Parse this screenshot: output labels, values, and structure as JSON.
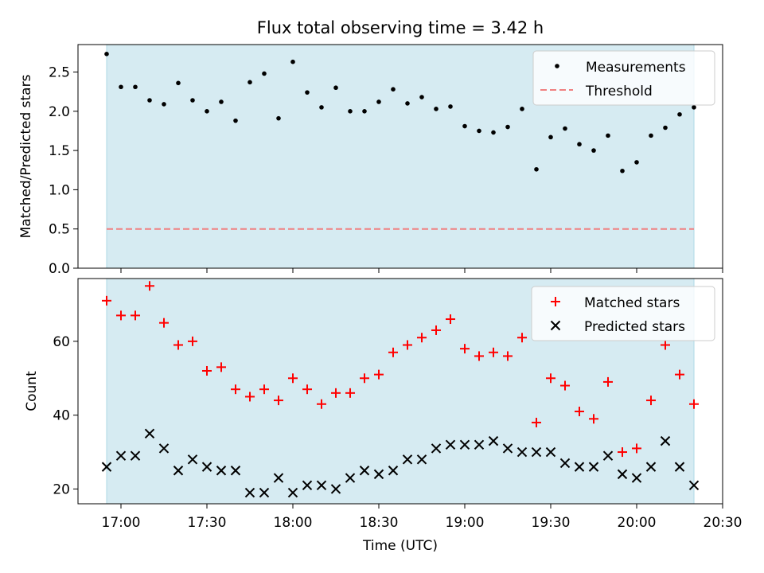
{
  "chart_data": [
    {
      "type": "scatter",
      "title": "Flux total observing time = 3.42 h",
      "ylabel": "Matched/Predicted stars",
      "xlabel": "",
      "ylim": [
        0,
        2.85
      ],
      "xlim": [
        "16:45",
        "20:30"
      ],
      "yticks": [
        "0.0",
        "0.5",
        "1.0",
        "1.5",
        "2.0",
        "2.5"
      ],
      "grid": false,
      "legend_position": "top-right",
      "shaded_interval": [
        "16:55",
        "20:20"
      ],
      "colors": {
        "measurements": "#000000",
        "threshold": "#f08080",
        "shade": "#add8e6"
      },
      "series": [
        {
          "name": "Measurements",
          "x": [
            "16:55",
            "17:00",
            "17:05",
            "17:10",
            "17:15",
            "17:20",
            "17:25",
            "17:30",
            "17:35",
            "17:40",
            "17:45",
            "17:50",
            "17:55",
            "18:00",
            "18:05",
            "18:10",
            "18:15",
            "18:20",
            "18:25",
            "18:30",
            "18:35",
            "18:40",
            "18:45",
            "18:50",
            "18:55",
            "19:00",
            "19:05",
            "19:10",
            "19:15",
            "19:20",
            "19:25",
            "19:30",
            "19:35",
            "19:40",
            "19:45",
            "19:50",
            "19:55",
            "20:00",
            "20:05",
            "20:10",
            "20:15",
            "20:20"
          ],
          "y": [
            2.73,
            2.31,
            2.31,
            2.14,
            2.09,
            2.36,
            2.14,
            2.0,
            2.12,
            1.88,
            2.37,
            2.48,
            1.91,
            2.63,
            2.24,
            2.05,
            2.3,
            2.0,
            2.0,
            2.12,
            2.28,
            2.1,
            2.18,
            2.03,
            2.06,
            1.81,
            1.75,
            1.73,
            1.8,
            2.03,
            1.26,
            1.67,
            1.78,
            1.58,
            1.5,
            1.69,
            1.24,
            1.35,
            1.69,
            1.79,
            1.96,
            2.05
          ]
        },
        {
          "name": "Threshold",
          "y_constant": 0.5
        }
      ]
    },
    {
      "type": "scatter",
      "title": "",
      "ylabel": "Count",
      "xlabel": "Time (UTC)",
      "ylim": [
        16,
        77
      ],
      "yticks": [
        "20",
        "40",
        "60"
      ],
      "xticks": [
        "17:00",
        "17:30",
        "18:00",
        "18:30",
        "19:00",
        "19:30",
        "20:00",
        "20:30"
      ],
      "grid": false,
      "legend_position": "top-right",
      "colors": {
        "matched": "#ff0000",
        "predicted": "#000000"
      },
      "series": [
        {
          "name": "Matched stars",
          "x": [
            "16:55",
            "17:00",
            "17:05",
            "17:10",
            "17:15",
            "17:20",
            "17:25",
            "17:30",
            "17:35",
            "17:40",
            "17:45",
            "17:50",
            "17:55",
            "18:00",
            "18:05",
            "18:10",
            "18:15",
            "18:20",
            "18:25",
            "18:30",
            "18:35",
            "18:40",
            "18:45",
            "18:50",
            "18:55",
            "19:00",
            "19:05",
            "19:10",
            "19:15",
            "19:20",
            "19:25",
            "19:30",
            "19:35",
            "19:40",
            "19:45",
            "19:50",
            "19:55",
            "20:00",
            "20:05",
            "20:10",
            "20:15",
            "20:20"
          ],
          "y": [
            71,
            67,
            67,
            75,
            65,
            59,
            60,
            52,
            53,
            47,
            45,
            47,
            44,
            50,
            47,
            43,
            46,
            46,
            50,
            51,
            57,
            59,
            61,
            63,
            66,
            58,
            56,
            57,
            56,
            61,
            38,
            50,
            48,
            41,
            39,
            49,
            30,
            31,
            44,
            59,
            51,
            43
          ]
        },
        {
          "name": "Predicted stars",
          "x": [
            "16:55",
            "17:00",
            "17:05",
            "17:10",
            "17:15",
            "17:20",
            "17:25",
            "17:30",
            "17:35",
            "17:40",
            "17:45",
            "17:50",
            "17:55",
            "18:00",
            "18:05",
            "18:10",
            "18:15",
            "18:20",
            "18:25",
            "18:30",
            "18:35",
            "18:40",
            "18:45",
            "18:50",
            "18:55",
            "19:00",
            "19:05",
            "19:10",
            "19:15",
            "19:20",
            "19:25",
            "19:30",
            "19:35",
            "19:40",
            "19:45",
            "19:50",
            "19:55",
            "20:00",
            "20:05",
            "20:10",
            "20:15",
            "20:20"
          ],
          "y": [
            26,
            29,
            29,
            35,
            31,
            25,
            28,
            26,
            25,
            25,
            19,
            19,
            23,
            19,
            21,
            21,
            20,
            23,
            25,
            24,
            25,
            28,
            28,
            31,
            32,
            32,
            32,
            33,
            31,
            30,
            30,
            30,
            27,
            26,
            26,
            29,
            24,
            23,
            26,
            33,
            26,
            21
          ]
        }
      ]
    }
  ]
}
